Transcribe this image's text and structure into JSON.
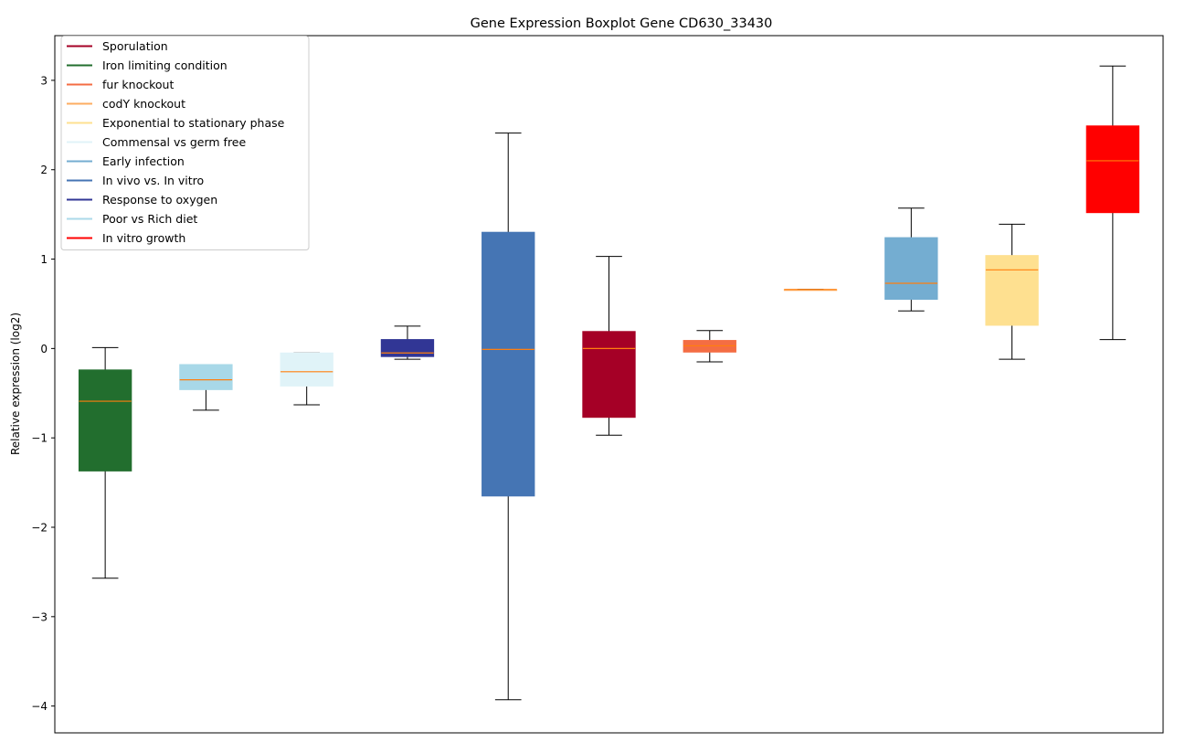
{
  "chart_data": {
    "type": "boxplot",
    "title": "Gene Expression Boxplot Gene CD630_33430",
    "xlabel": "",
    "ylabel": "Relative expression (log2)",
    "ylim": [
      -4.3,
      3.5
    ],
    "yticks": [
      -4,
      -3,
      -2,
      -1,
      0,
      1,
      2,
      3
    ],
    "ytick_labels": [
      "−4",
      "−3",
      "−2",
      "−1",
      "0",
      "1",
      "2",
      "3"
    ],
    "grid": false,
    "legend_position": "top-left",
    "median_color": "#ff7f0e",
    "legend": [
      {
        "label": "Sporulation",
        "color": "#a50026"
      },
      {
        "label": "Iron limiting condition",
        "color": "#226e2e"
      },
      {
        "label": "fur knockout",
        "color": "#f46d43"
      },
      {
        "label": "codY knockout",
        "color": "#fdae61"
      },
      {
        "label": "Exponential to stationary phase",
        "color": "#fee090"
      },
      {
        "label": "Commensal vs germ free",
        "color": "#e0f3f8"
      },
      {
        "label": "Early infection",
        "color": "#74add1"
      },
      {
        "label": "In vivo vs. In vitro",
        "color": "#4575b4"
      },
      {
        "label": "Response to oxygen",
        "color": "#313695"
      },
      {
        "label": "Poor vs Rich diet",
        "color": "#abd9e9"
      },
      {
        "label": "In vitro growth",
        "color": "#ff0000"
      }
    ],
    "boxes": [
      {
        "condition": "Iron limiting condition",
        "color": "#226e2e",
        "whislo": -2.57,
        "q1": -1.37,
        "med": -0.59,
        "q3": -0.24,
        "whishi": 0.01
      },
      {
        "condition": "Poor vs Rich diet",
        "color": "#a8d8e8",
        "whislo": -0.69,
        "q1": -0.46,
        "med": -0.35,
        "q3": -0.18,
        "whishi": -0.18
      },
      {
        "condition": "Commensal vs germ free",
        "color": "#e0f3f8",
        "whislo": -0.63,
        "q1": -0.42,
        "med": -0.26,
        "q3": -0.05,
        "whishi": -0.05
      },
      {
        "condition": "Response to oxygen",
        "color": "#313695",
        "whislo": -0.12,
        "q1": -0.09,
        "med": -0.05,
        "q3": 0.1,
        "whishi": 0.25
      },
      {
        "condition": "In vivo vs. In vitro",
        "color": "#4575b4",
        "whislo": -3.93,
        "q1": -1.65,
        "med": -0.01,
        "q3": 1.3,
        "whishi": 2.41
      },
      {
        "condition": "Sporulation",
        "color": "#a50026",
        "whislo": -0.97,
        "q1": -0.77,
        "med": 0.0,
        "q3": 0.19,
        "whishi": 1.03
      },
      {
        "condition": "fur knockout",
        "color": "#f46d43",
        "whislo": -0.15,
        "q1": -0.04,
        "med": 0.03,
        "q3": 0.09,
        "whishi": 0.2
      },
      {
        "condition": "codY knockout",
        "color": "#fdae61",
        "whislo": 0.66,
        "q1": 0.66,
        "med": 0.66,
        "q3": 0.66,
        "whishi": 0.66
      },
      {
        "condition": "Early infection",
        "color": "#74add1",
        "whislo": 0.42,
        "q1": 0.55,
        "med": 0.73,
        "q3": 1.24,
        "whishi": 1.57
      },
      {
        "condition": "Exponential to stationary phase",
        "color": "#fee090",
        "whislo": -0.12,
        "q1": 0.26,
        "med": 0.88,
        "q3": 1.04,
        "whishi": 1.39
      },
      {
        "condition": "In vitro growth",
        "color": "#ff0000",
        "whislo": 0.1,
        "q1": 1.52,
        "med": 2.1,
        "q3": 2.49,
        "whishi": 3.16
      }
    ]
  }
}
